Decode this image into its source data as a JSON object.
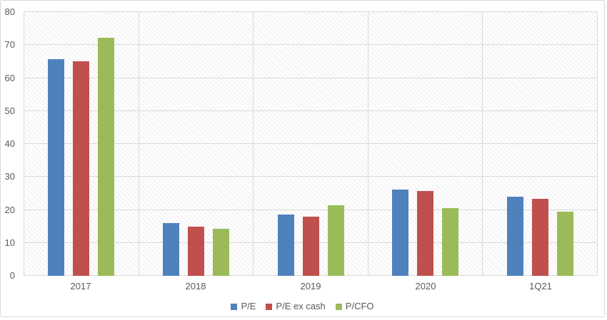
{
  "chart_data": {
    "type": "bar",
    "title": "",
    "xlabel": "",
    "ylabel": "",
    "categories": [
      "2017",
      "2018",
      "2019",
      "2020",
      "1Q21"
    ],
    "series": [
      {
        "name": "P/E",
        "color": "#4F81BD",
        "values": [
          65.5,
          16.0,
          18.6,
          26.0,
          24.0
        ]
      },
      {
        "name": "P/E ex cash",
        "color": "#C0504D",
        "values": [
          65.0,
          14.8,
          17.8,
          25.7,
          23.3
        ]
      },
      {
        "name": "P/CFO",
        "color": "#9BBB59",
        "values": [
          72.0,
          14.3,
          21.4,
          20.5,
          19.5
        ]
      }
    ],
    "ylim": [
      0,
      80
    ],
    "y_tick_labels": [
      "0",
      "10",
      "20",
      "30",
      "40",
      "50",
      "60",
      "70",
      "80"
    ],
    "grid": true,
    "legend_position": "bottom",
    "plot_background": "diagonal-hatch"
  },
  "colors": {
    "axis_text": "#595959",
    "gridline": "#d9d9d9",
    "frame_border": "#d9d9d9"
  }
}
